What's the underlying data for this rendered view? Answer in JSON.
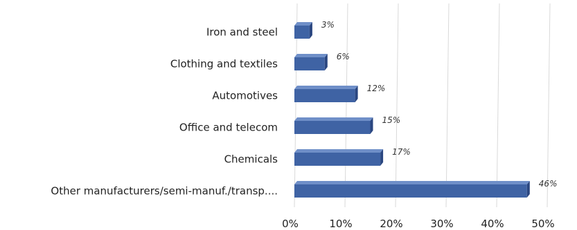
{
  "chart_data": {
    "type": "bar",
    "orientation": "horizontal",
    "categories": [
      "Iron and steel",
      "Clothing and textiles",
      "Automotives",
      "Office and telecom",
      "Chemicals",
      "Other manufacturers/semi-manuf./transp...."
    ],
    "values": [
      3,
      6,
      12,
      15,
      17,
      46
    ],
    "data_labels": [
      "3%",
      "6%",
      "12%",
      "15%",
      "17%",
      "46%"
    ],
    "x_ticks": [
      "0%",
      "10%",
      "20%",
      "30%",
      "40%",
      "50%"
    ],
    "xlim": [
      0,
      50
    ],
    "grid": true,
    "legend": "none",
    "bar_color": "#3f63a4",
    "bar_side_color": "#2a4680",
    "bar_top_color": "#6f8fc8"
  }
}
